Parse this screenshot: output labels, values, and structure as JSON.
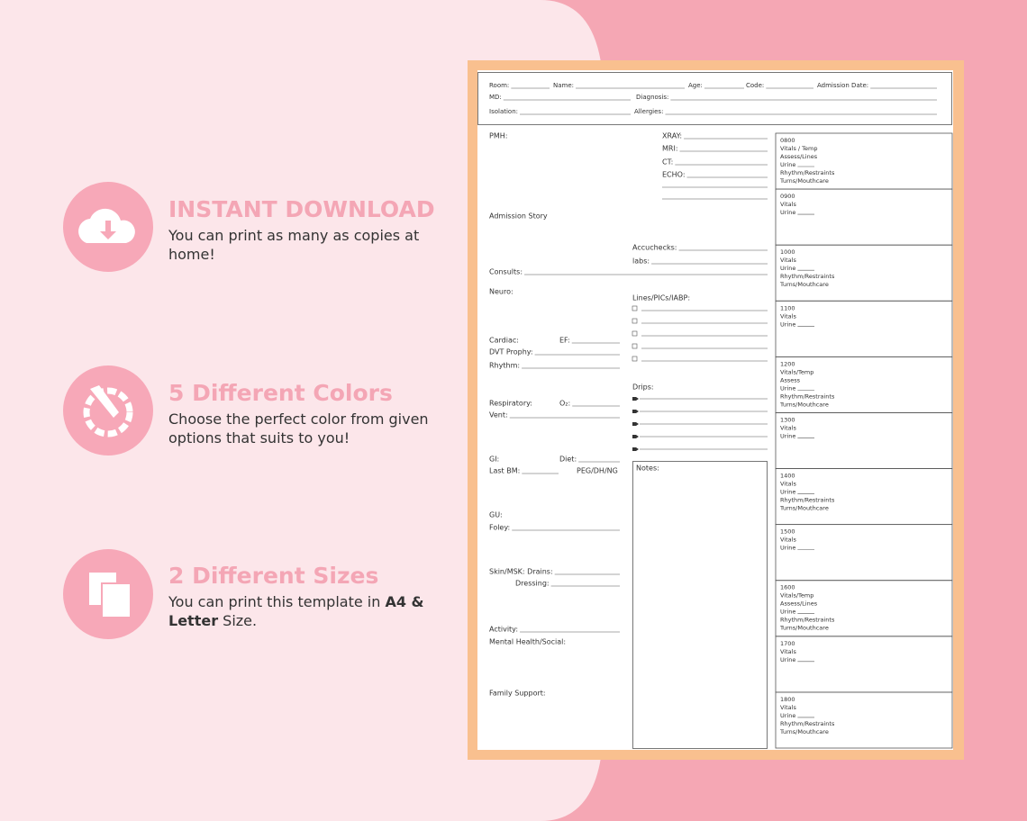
{
  "features": [
    {
      "title": "INSTANT DOWNLOAD",
      "text": "You can print as many as copies at home!"
    },
    {
      "title": "5 Different Colors",
      "text": "Choose the perfect color from given options that suits to you!"
    },
    {
      "title": "2 Different Sizes",
      "text_parts": [
        "You can print this template in ",
        "A4 & Letter",
        " Size."
      ]
    }
  ],
  "form": {
    "header": [
      "Room:",
      "Name:",
      "Age:",
      "Code:",
      "Admission Date:",
      "MD:",
      "Diagnosis:",
      "Isolation:",
      "Allergies:"
    ],
    "left": [
      "PMH:",
      "Admission Story",
      "Consults:",
      "Neuro:",
      "Cardiac:",
      "EF:",
      "DVT Prophy:",
      "Rhythm:",
      "Respiratory:",
      "O₂:",
      "Vent:",
      "GI:",
      "Diet:",
      "Last BM:",
      "PEG/DH/NG",
      "GU:",
      "Foley:",
      "Skin/MSK: Drains:",
      "Dressing:",
      "Activity:",
      "Mental Health/Social:",
      "Family Support:"
    ],
    "middle": [
      "XRAY:",
      "MRI:",
      "CT:",
      "ECHO:",
      "Accuchecks:",
      "labs:",
      "Lines/PICs/IABP:",
      "Drips:"
    ],
    "notes": "Notes:",
    "timeline": [
      {
        "time": "0800",
        "items": [
          "Vitals / Temp",
          "Assess/Lines",
          "Urine",
          "Rhythm/Restraints",
          "Turns/Mouthcare"
        ]
      },
      {
        "time": "0900",
        "items": [
          "Vitals",
          "Urine"
        ]
      },
      {
        "time": "1000",
        "items": [
          "Vitals",
          "Urine",
          "Rhythm/Restraints",
          "Turns/Mouthcare"
        ]
      },
      {
        "time": "1100",
        "items": [
          "Vitals",
          "Urine"
        ]
      },
      {
        "time": "1200",
        "items": [
          "Vitals/Temp",
          "Assess",
          "Urine",
          "Rhythm/Restraints",
          "Turns/Mouthcare"
        ]
      },
      {
        "time": "1300",
        "items": [
          "Vitals",
          "Urine"
        ]
      },
      {
        "time": "1400",
        "items": [
          "Vitals",
          "Urine",
          "Rhythm/Restraints",
          "Turns/Mouthcare"
        ]
      },
      {
        "time": "1500",
        "items": [
          "Vitals",
          "Urine"
        ]
      },
      {
        "time": "1600",
        "items": [
          "Vitals/Temp",
          "Assess/Lines",
          "Urine",
          "Rhythm/Restraints",
          "Turns/Mouthcare"
        ]
      },
      {
        "time": "1700",
        "items": [
          "Vitals",
          "Urine"
        ]
      },
      {
        "time": "1800",
        "items": [
          "Vitals",
          "Urine",
          "Rhythm/Restraints",
          "Turns/Mouthcare"
        ]
      }
    ]
  }
}
